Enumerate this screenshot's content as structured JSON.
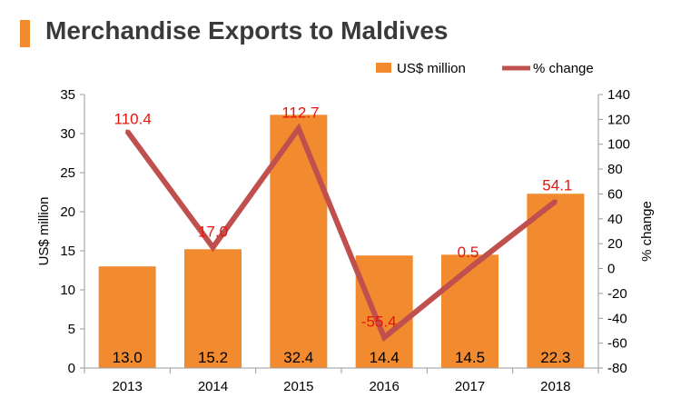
{
  "title": "Merchandise Exports to Maldives",
  "colors": {
    "bar": "#f28a30",
    "line": "#c0504d",
    "line_label": "#e8140c",
    "title_accent": "#f28a30"
  },
  "chart_data": {
    "type": "bar",
    "categories": [
      "2013",
      "2014",
      "2015",
      "2016",
      "2017",
      "2018"
    ],
    "series": [
      {
        "name": "US$ million",
        "type": "bar",
        "axis": "left",
        "values": [
          13.0,
          15.2,
          32.4,
          14.4,
          14.5,
          22.3
        ],
        "labels": [
          "13.0",
          "15.2",
          "32.4",
          "14.4",
          "14.5",
          "22.3"
        ]
      },
      {
        "name": "% change",
        "type": "line",
        "axis": "right",
        "values": [
          110.4,
          17.0,
          112.7,
          -55.4,
          0.5,
          54.1
        ],
        "labels": [
          "110.4",
          "17.0",
          "112.7",
          "-55.4",
          "0.5",
          "54.1"
        ]
      }
    ],
    "ylabel": "US$ million",
    "y2label": "% change",
    "ylim": [
      0,
      35
    ],
    "y2lim": [
      -80,
      140
    ],
    "yticks": [
      "0",
      "5",
      "10",
      "15",
      "20",
      "25",
      "30",
      "35"
    ],
    "y2ticks": [
      "-80",
      "-60",
      "-40",
      "-20",
      "0",
      "20",
      "40",
      "60",
      "80",
      "100",
      "120",
      "140"
    ],
    "legend": "top-right",
    "grid": false
  }
}
